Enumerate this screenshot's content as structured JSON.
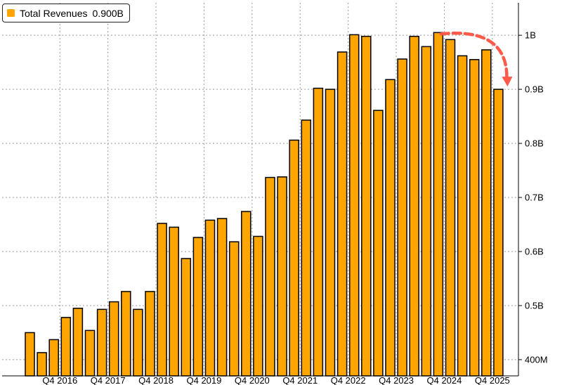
{
  "legend": {
    "label": "Total Revenues",
    "value": "0.900B",
    "color": "#FFA500"
  },
  "chart_data": {
    "type": "bar",
    "ylim": [
      0.37,
      1.06
    ],
    "y_ticks": [
      {
        "value": 0.4,
        "label": "400M"
      },
      {
        "value": 0.5,
        "label": "0.5B"
      },
      {
        "value": 0.6,
        "label": "0.6B"
      },
      {
        "value": 0.7,
        "label": "0.7B"
      },
      {
        "value": 0.8,
        "label": "0.8B"
      },
      {
        "value": 0.9,
        "label": "0.9B"
      },
      {
        "value": 1.0,
        "label": "1B"
      }
    ],
    "x_ticks": [
      {
        "index": 2,
        "label": "Q4 2016"
      },
      {
        "index": 6,
        "label": "Q4 2017"
      },
      {
        "index": 10,
        "label": "Q4 2018"
      },
      {
        "index": 14,
        "label": "Q4 2019"
      },
      {
        "index": 18,
        "label": "Q4 2020"
      },
      {
        "index": 22,
        "label": "Q4 2021"
      },
      {
        "index": 26,
        "label": "Q4 2022"
      },
      {
        "index": 30,
        "label": "Q4 2023"
      },
      {
        "index": 34,
        "label": "Q4 2024"
      },
      {
        "index": 38,
        "label": "Q4 2025"
      }
    ],
    "values": [
      0.45,
      0.413,
      0.437,
      0.478,
      0.495,
      0.454,
      0.493,
      0.507,
      0.526,
      0.493,
      0.526,
      0.652,
      0.645,
      0.587,
      0.626,
      0.658,
      0.661,
      0.618,
      0.674,
      0.628,
      0.737,
      0.738,
      0.806,
      0.843,
      0.902,
      0.9,
      0.969,
      1.001,
      0.998,
      0.861,
      0.918,
      0.956,
      0.998,
      0.979,
      1.005,
      0.992,
      0.962,
      0.955,
      0.973,
      0.9
    ],
    "bar_color": "#FFA500",
    "grid": true,
    "trend_arrow_color": "#FF5A4A"
  }
}
